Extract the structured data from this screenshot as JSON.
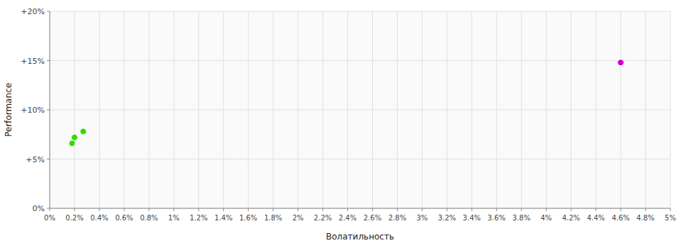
{
  "chart_data": {
    "type": "scatter",
    "xlabel": "Волатильность",
    "ylabel": "Performance",
    "xlim": [
      0,
      0.05
    ],
    "ylim": [
      0,
      0.2
    ],
    "xticks": [
      {
        "value": 0,
        "label": "0%"
      },
      {
        "value": 0.002,
        "label": "0.2%"
      },
      {
        "value": 0.004,
        "label": "0.4%"
      },
      {
        "value": 0.006,
        "label": "0.6%"
      },
      {
        "value": 0.008,
        "label": "0.8%"
      },
      {
        "value": 0.01,
        "label": "1%"
      },
      {
        "value": 0.012,
        "label": "1.2%"
      },
      {
        "value": 0.014,
        "label": "1.4%"
      },
      {
        "value": 0.016,
        "label": "1.6%"
      },
      {
        "value": 0.018,
        "label": "1.8%"
      },
      {
        "value": 0.02,
        "label": "2%"
      },
      {
        "value": 0.022,
        "label": "2.2%"
      },
      {
        "value": 0.024,
        "label": "2.4%"
      },
      {
        "value": 0.026,
        "label": "2.6%"
      },
      {
        "value": 0.028,
        "label": "2.8%"
      },
      {
        "value": 0.03,
        "label": "3%"
      },
      {
        "value": 0.032,
        "label": "3.2%"
      },
      {
        "value": 0.034,
        "label": "3.4%"
      },
      {
        "value": 0.036,
        "label": "3.6%"
      },
      {
        "value": 0.038,
        "label": "3.8%"
      },
      {
        "value": 0.04,
        "label": "4%"
      },
      {
        "value": 0.042,
        "label": "4.2%"
      },
      {
        "value": 0.044,
        "label": "4.4%"
      },
      {
        "value": 0.046,
        "label": "4.6%"
      },
      {
        "value": 0.048,
        "label": "4.8%"
      },
      {
        "value": 0.05,
        "label": "5%"
      }
    ],
    "yticks": [
      {
        "value": 0.2,
        "label": "+20%"
      },
      {
        "value": 0.15,
        "label": "+15%"
      },
      {
        "value": 0.1,
        "label": "+10%"
      },
      {
        "value": 0.05,
        "label": "+5%"
      },
      {
        "value": 0,
        "label": "0%"
      }
    ],
    "grid": true,
    "series": [
      {
        "color": "#33dd00",
        "x": [
          0.002,
          0.0027,
          0.0018
        ],
        "values": [
          0.072,
          0.078,
          0.066
        ]
      },
      {
        "color": "#cc00cc",
        "x": [
          0.046
        ],
        "values": [
          0.148
        ]
      }
    ]
  }
}
